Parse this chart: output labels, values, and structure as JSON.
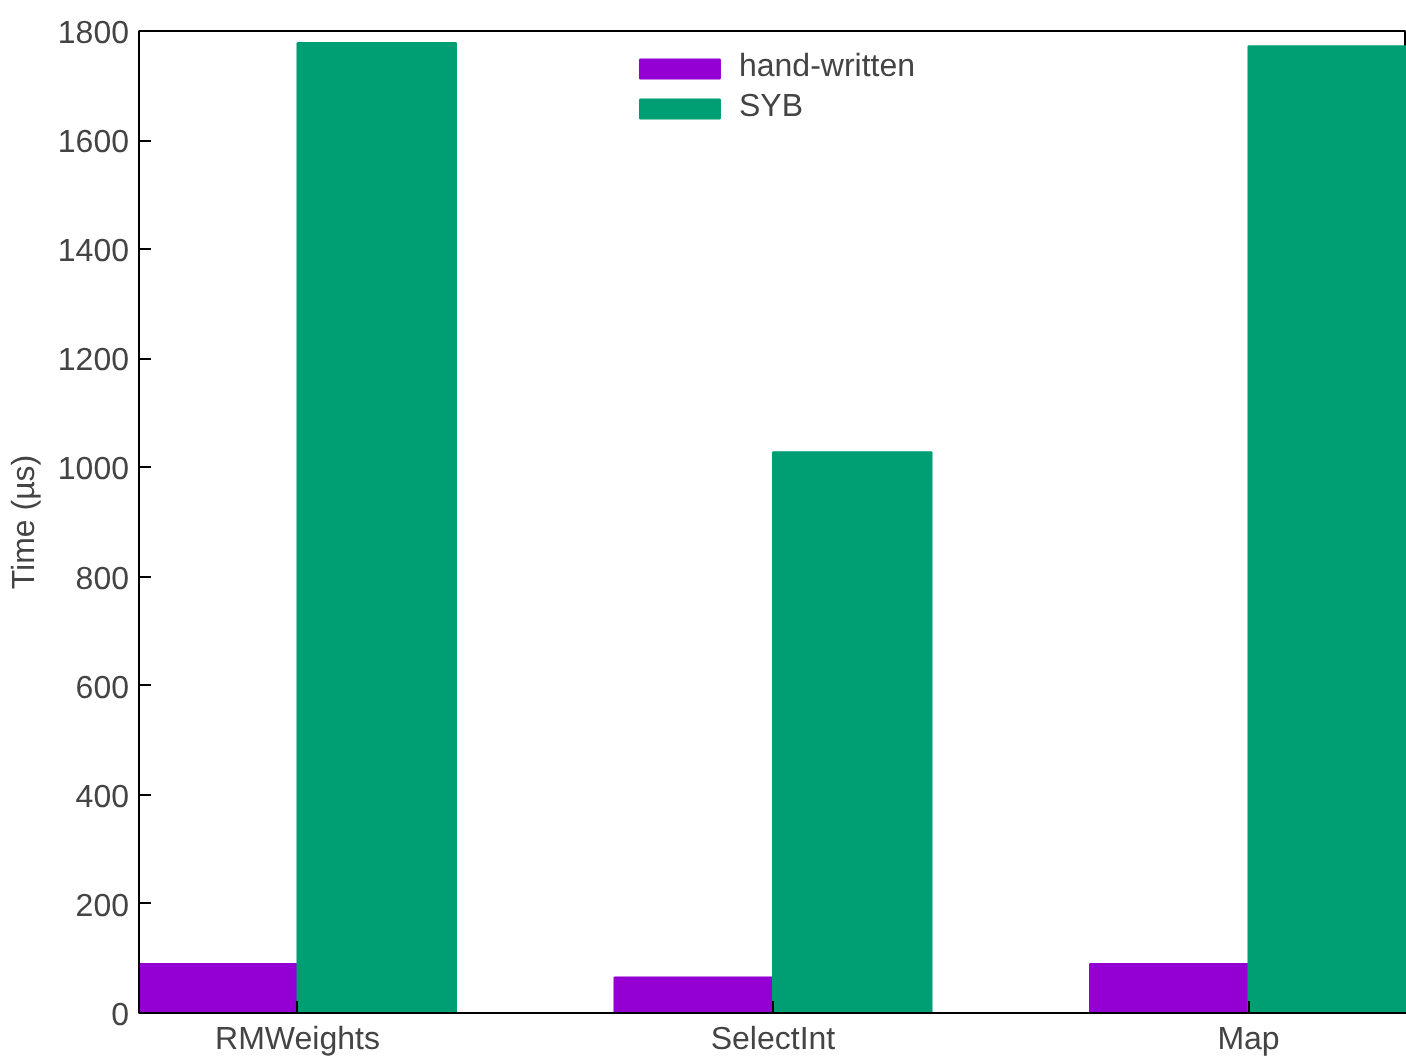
{
  "chart_data": {
    "type": "bar",
    "ylabel": "Time (µs)",
    "categories": [
      "RMWeights",
      "SelectInt",
      "Map"
    ],
    "series": [
      {
        "name": "hand-written",
        "color": "#9400d3",
        "values": [
          90,
          65,
          90
        ]
      },
      {
        "name": "SYB",
        "color": "#009e73",
        "values": [
          1778,
          1028,
          1772
        ]
      }
    ],
    "ylim": [
      0,
      1800
    ],
    "yticks": [
      0,
      200,
      400,
      600,
      800,
      1000,
      1200,
      1400,
      1600,
      1800
    ],
    "grid": false,
    "legend": "top"
  }
}
